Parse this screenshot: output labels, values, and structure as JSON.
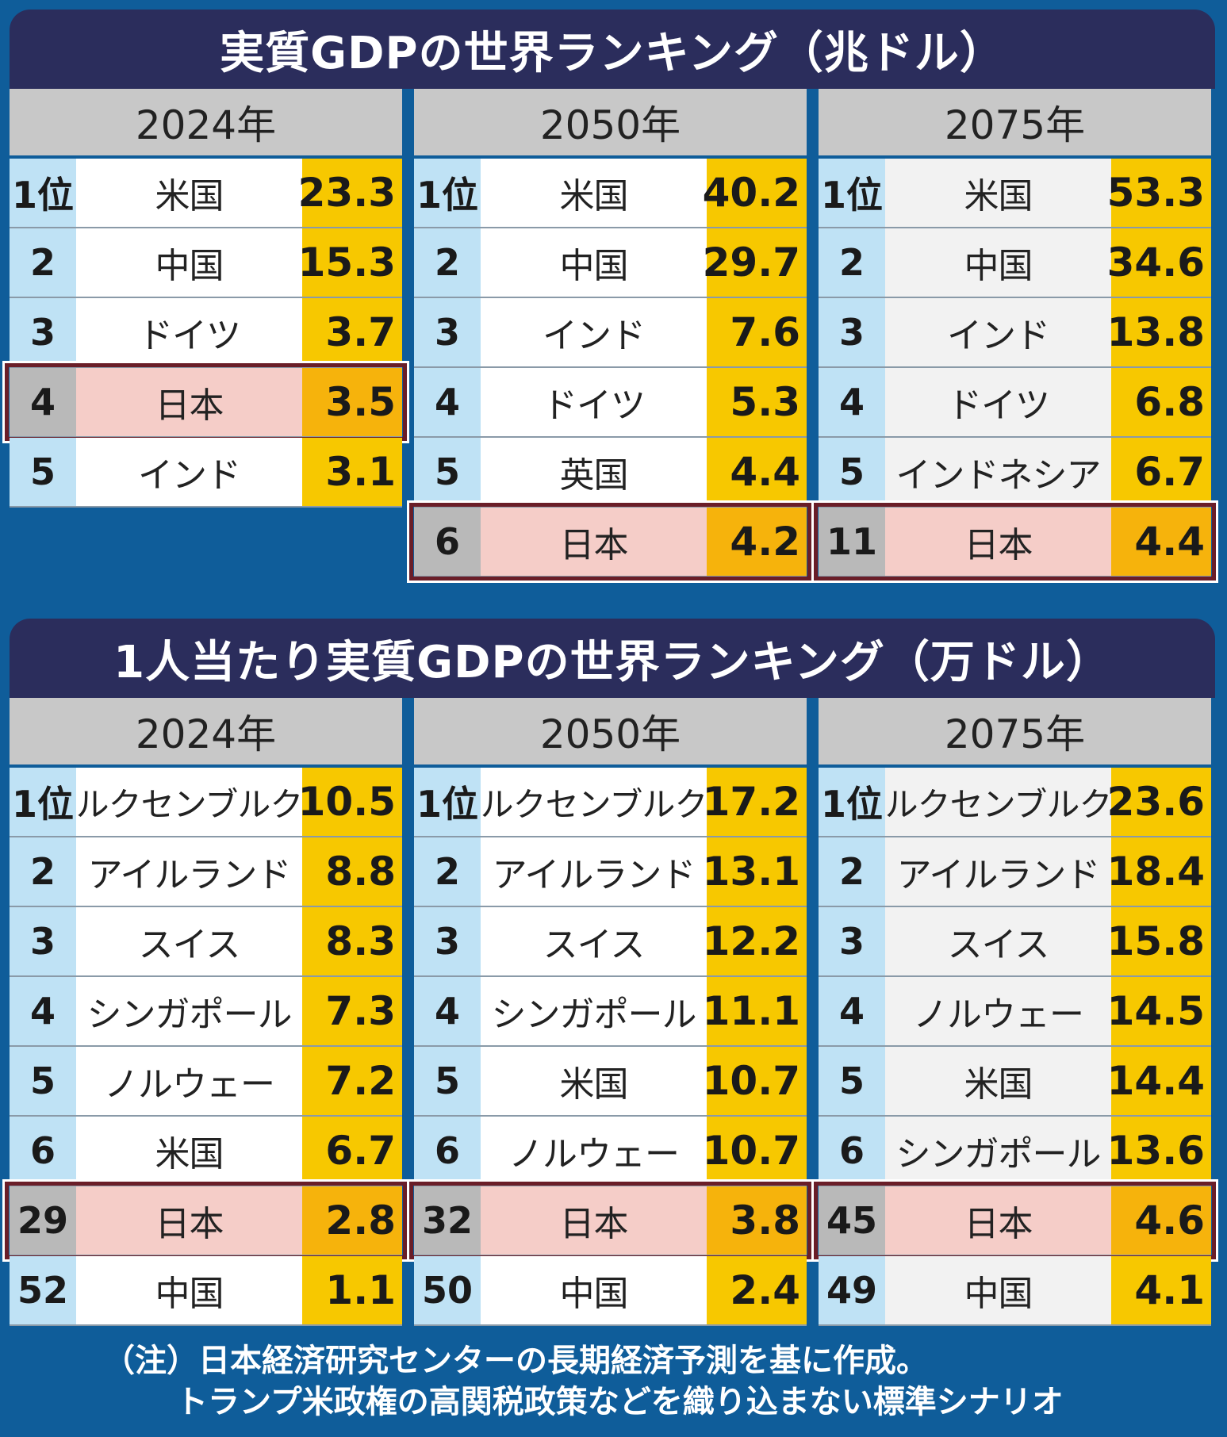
{
  "chart_data": [
    {
      "type": "table",
      "title": "実質GDPの世界ランキング（兆ドル）",
      "columns": [
        {
          "year": "2024年",
          "rows": [
            {
              "rank": "1位",
              "country": "米国",
              "value": "23.3"
            },
            {
              "rank": "2",
              "country": "中国",
              "value": "15.3"
            },
            {
              "rank": "3",
              "country": "ドイツ",
              "value": "3.7"
            },
            {
              "rank": "4",
              "country": "日本",
              "value": "3.5",
              "highlight": true
            },
            {
              "rank": "5",
              "country": "インド",
              "value": "3.1"
            }
          ]
        },
        {
          "year": "2050年",
          "rows": [
            {
              "rank": "1位",
              "country": "米国",
              "value": "40.2"
            },
            {
              "rank": "2",
              "country": "中国",
              "value": "29.7"
            },
            {
              "rank": "3",
              "country": "インド",
              "value": "7.6"
            },
            {
              "rank": "4",
              "country": "ドイツ",
              "value": "5.3"
            },
            {
              "rank": "5",
              "country": "英国",
              "value": "4.4"
            },
            {
              "rank": "6",
              "country": "日本",
              "value": "4.2",
              "highlight": true
            }
          ]
        },
        {
          "year": "2075年",
          "rows": [
            {
              "rank": "1位",
              "country": "米国",
              "value": "53.3"
            },
            {
              "rank": "2",
              "country": "中国",
              "value": "34.6"
            },
            {
              "rank": "3",
              "country": "インド",
              "value": "13.8"
            },
            {
              "rank": "4",
              "country": "ドイツ",
              "value": "6.8"
            },
            {
              "rank": "5",
              "country": "インドネシア",
              "value": "6.7"
            },
            {
              "rank": "11",
              "country": "日本",
              "value": "4.4",
              "highlight": true
            }
          ]
        }
      ]
    },
    {
      "type": "table",
      "title": "1人当たり実質GDPの世界ランキング（万ドル）",
      "columns": [
        {
          "year": "2024年",
          "rows": [
            {
              "rank": "1位",
              "country": "ルクセンブルク",
              "value": "10.5"
            },
            {
              "rank": "2",
              "country": "アイルランド",
              "value": "8.8"
            },
            {
              "rank": "3",
              "country": "スイス",
              "value": "8.3"
            },
            {
              "rank": "4",
              "country": "シンガポール",
              "value": "7.3"
            },
            {
              "rank": "5",
              "country": "ノルウェー",
              "value": "7.2"
            },
            {
              "rank": "6",
              "country": "米国",
              "value": "6.7"
            },
            {
              "rank": "29",
              "country": "日本",
              "value": "2.8",
              "highlight": true
            },
            {
              "rank": "52",
              "country": "中国",
              "value": "1.1"
            }
          ]
        },
        {
          "year": "2050年",
          "rows": [
            {
              "rank": "1位",
              "country": "ルクセンブルク",
              "value": "17.2"
            },
            {
              "rank": "2",
              "country": "アイルランド",
              "value": "13.1"
            },
            {
              "rank": "3",
              "country": "スイス",
              "value": "12.2"
            },
            {
              "rank": "4",
              "country": "シンガポール",
              "value": "11.1"
            },
            {
              "rank": "5",
              "country": "米国",
              "value": "10.7"
            },
            {
              "rank": "6",
              "country": "ノルウェー",
              "value": "10.7"
            },
            {
              "rank": "32",
              "country": "日本",
              "value": "3.8",
              "highlight": true
            },
            {
              "rank": "50",
              "country": "中国",
              "value": "2.4"
            }
          ]
        },
        {
          "year": "2075年",
          "rows": [
            {
              "rank": "1位",
              "country": "ルクセンブルク",
              "value": "23.6"
            },
            {
              "rank": "2",
              "country": "アイルランド",
              "value": "18.4"
            },
            {
              "rank": "3",
              "country": "スイス",
              "value": "15.8"
            },
            {
              "rank": "4",
              "country": "ノルウェー",
              "value": "14.5"
            },
            {
              "rank": "5",
              "country": "米国",
              "value": "14.4"
            },
            {
              "rank": "6",
              "country": "シンガポール",
              "value": "13.6"
            },
            {
              "rank": "45",
              "country": "日本",
              "value": "4.6",
              "highlight": true
            },
            {
              "rank": "49",
              "country": "中国",
              "value": "4.1"
            }
          ]
        }
      ]
    }
  ],
  "note": {
    "line1": "（注）日本経済研究センターの長期経済予測を基に作成。",
    "line2": "トランプ米政権の高関税政策などを織り込まない標準シナリオ"
  },
  "colors": {
    "background": "#0f5d9a",
    "title_bar": "#2b2d5c",
    "rank_cell": "#bfe2f5",
    "value_cell": "#f7c800",
    "japan_row": "#f5cdc8",
    "japan_value": "#f6b30c",
    "japan_border": "#6a1e28"
  }
}
